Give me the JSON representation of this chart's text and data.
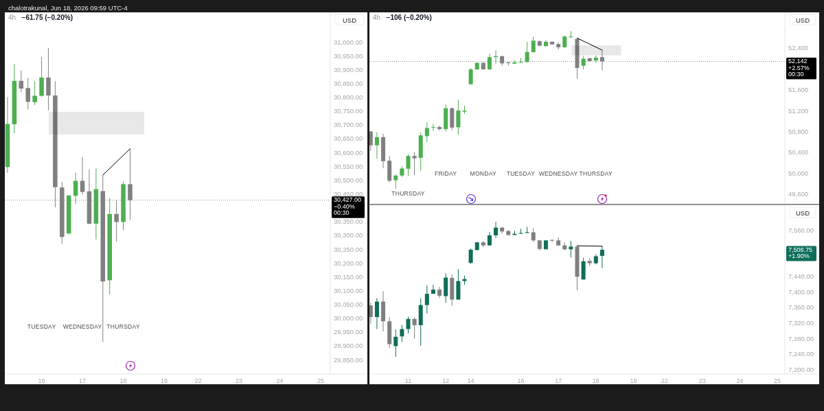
{
  "chart_data": [
    {
      "type": "candlestick",
      "title": "4h",
      "subtitle": "−61.75 (−0.20%)",
      "ylabel": "USD",
      "annotations": [
        "chalotrakunal, Jun 18, 2026 09:59 UTC-4",
        "TUESDAY",
        "WEDNESDAY",
        "THURSDAY"
      ],
      "categories": [
        null,
        null,
        null,
        null,
        null,
        "16",
        null,
        null,
        null,
        null,
        null,
        "17",
        null,
        null,
        null,
        null,
        null,
        "18",
        null,
        null,
        null,
        null,
        null,
        "19",
        null,
        null,
        null,
        null,
        "22",
        null,
        null,
        null,
        null,
        null,
        "23",
        null,
        null,
        null,
        null,
        null,
        "24",
        null,
        null,
        null,
        null,
        null,
        "25",
        null
      ],
      "ohlc": [
        [
          30547,
          30800,
          30526,
          30703
        ],
        [
          30702,
          30920,
          30669,
          30859
        ],
        [
          30859,
          30897,
          30818,
          30831
        ],
        [
          30833,
          30870,
          30756,
          30783
        ],
        [
          30782,
          30858,
          30771,
          30805
        ],
        [
          30805,
          30946,
          30801,
          30871
        ],
        [
          30871,
          30978,
          30752,
          30806
        ],
        [
          30806,
          30858,
          30401,
          30474
        ],
        [
          30473,
          30493,
          30268,
          30294
        ],
        [
          30307,
          30446,
          30301,
          30444
        ],
        [
          30443,
          30526,
          30413,
          30497
        ],
        [
          30497,
          30583,
          30448,
          30457
        ],
        [
          30459,
          30538,
          30340,
          30342
        ],
        [
          30342,
          30543,
          30285,
          30467
        ],
        [
          30460,
          30518,
          29914,
          30133
        ],
        [
          30137,
          30435,
          30085,
          30377
        ],
        [
          30377,
          30427,
          30278,
          30348
        ],
        [
          30348,
          30495,
          30318,
          30485
        ],
        [
          30485,
          30613,
          30355,
          30427
        ],
        null,
        null,
        null,
        null,
        null,
        null,
        null,
        null,
        null,
        null,
        null,
        null,
        null,
        null,
        null,
        null,
        null,
        null,
        null,
        null,
        null,
        null,
        null,
        null,
        null,
        null,
        null,
        null,
        null
      ],
      "colors": [
        "#4caf50",
        "#4caf50",
        "#808080",
        "#808080",
        "#4caf50",
        "#4caf50",
        "#808080",
        "#808080",
        "#808080",
        "#4caf50",
        "#4caf50",
        "#808080",
        "#808080",
        "#4caf50",
        "#808080",
        "#4caf50",
        "#808080",
        "#4caf50",
        "#808080",
        null,
        null,
        null,
        null,
        null,
        null,
        null,
        null,
        null,
        null,
        null,
        null,
        null,
        null,
        null,
        null,
        null,
        null,
        null,
        null,
        null,
        null,
        null,
        null,
        null,
        null,
        null,
        null,
        null
      ],
      "series": [
        {
          "type": "line",
          "values": [
            null,
            null,
            null,
            null,
            null,
            null,
            null,
            null,
            null,
            null,
            null,
            null,
            null,
            null,
            30518,
            null,
            null,
            null,
            30613,
            null,
            null,
            null,
            null,
            null,
            null,
            null,
            null,
            null,
            null,
            null,
            null,
            null,
            null,
            null,
            null,
            null,
            null,
            null,
            null,
            null,
            null,
            null,
            null,
            null,
            null,
            null,
            null,
            null
          ],
          "color": "#000000"
        }
      ],
      "bands": [
        {
          "axis": "y",
          "from": 30665,
          "to": 30747,
          "color": "#e8e8e8"
        }
      ],
      "ref_lines": [
        {
          "axis": "y",
          "value": 30427,
          "label": "30,427.00\n−0.40%\n00:30",
          "color": "#000000",
          "line_style": "dotted"
        }
      ],
      "ylim": [
        29798,
        31107
      ],
      "yticks": [
        {
          "value": 29850,
          "label": "29,850.00"
        },
        {
          "value": 29900,
          "label": "29,900.00"
        },
        {
          "value": 29950,
          "label": "29,950.00"
        },
        {
          "value": 30000,
          "label": "30,000.00"
        },
        {
          "value": 30050,
          "label": "30,050.00"
        },
        {
          "value": 30100,
          "label": "30,100.00"
        },
        {
          "value": 30150,
          "label": "30,150.00"
        },
        {
          "value": 30200,
          "label": "30,200.00"
        },
        {
          "value": 30250,
          "label": "30,250.00"
        },
        {
          "value": 30300,
          "label": "30,300.00"
        },
        {
          "value": 30350,
          "label": "30,350.00"
        },
        {
          "value": 30450,
          "label": "30,450.00"
        },
        {
          "value": 30500,
          "label": "30,500.00"
        },
        {
          "value": 30550,
          "label": "30,550.00"
        },
        {
          "value": 30600,
          "label": "30,600.00"
        },
        {
          "value": 30650,
          "label": "30,650.00"
        },
        {
          "value": 30700,
          "label": "30,700.00"
        },
        {
          "value": 30750,
          "label": "30,750.00"
        },
        {
          "value": 30800,
          "label": "30,800.00"
        },
        {
          "value": 30850,
          "label": "30,850.00"
        },
        {
          "value": 30900,
          "label": "30,900.00"
        },
        {
          "value": 30950,
          "label": "30,950.00"
        },
        {
          "value": 31000,
          "label": "31,000.00"
        }
      ]
    },
    {
      "type": "candlestick",
      "title": "4h",
      "subtitle": "−106 (−0.20%)",
      "ylabel": "USD",
      "tick_labels": "y",
      "annotations": [
        "THURSDAY",
        "FRIDAY",
        "MONDAY",
        "TUESDAY",
        "WEDNESDAY",
        "THURSDAY"
      ],
      "categories": [
        null,
        null,
        null,
        null,
        null,
        null,
        null,
        null,
        null,
        null,
        null,
        null,
        null,
        null,
        null,
        null,
        null,
        null,
        null,
        null,
        null,
        null,
        null,
        null,
        null,
        null,
        null,
        null,
        null,
        null,
        null,
        null,
        null,
        null,
        null,
        null,
        null,
        null,
        null,
        null,
        null,
        null,
        null,
        null,
        null,
        null,
        null,
        null,
        null,
        null,
        null,
        null,
        null,
        null,
        null,
        null,
        null,
        null,
        null,
        null,
        null,
        null,
        null,
        null,
        null,
        null,
        null
      ],
      "ohlc": [
        [
          50800,
          50810,
          50425,
          50535
        ],
        [
          50535,
          50785,
          50275,
          50690
        ],
        [
          50690,
          50755,
          50095,
          50230
        ],
        [
          50240,
          50330,
          49825,
          49855
        ],
        [
          49865,
          49975,
          49705,
          49955
        ],
        [
          49955,
          50130,
          49930,
          50090
        ],
        [
          50085,
          50360,
          49945,
          50330
        ],
        [
          50330,
          50405,
          49965,
          50285
        ],
        [
          50295,
          50785,
          50045,
          50725
        ],
        [
          50710,
          50975,
          50595,
          50865
        ],
        [
          50875,
          50945,
          50810,
          50885
        ],
        [
          50885,
          50910,
          50820,
          50845
        ],
        [
          50845,
          51315,
          50800,
          51245
        ],
        [
          51245,
          51260,
          50820,
          50875
        ],
        [
          50880,
          51410,
          50735,
          51200
        ],
        [
          51180,
          51295,
          51135,
          51200
        ],
        [
          51705,
          52015,
          51700,
          51990
        ],
        [
          51990,
          52125,
          51985,
          52115
        ],
        [
          52115,
          52130,
          51985,
          51990
        ],
        [
          51990,
          52290,
          51990,
          52225
        ],
        [
          52225,
          52355,
          52100,
          52245
        ],
        [
          52245,
          52250,
          52060,
          52105
        ],
        [
          52125,
          52135,
          52060,
          52110
        ],
        [
          52100,
          52160,
          52095,
          52125
        ],
        [
          52120,
          52210,
          52115,
          52130
        ],
        [
          52130,
          52520,
          52130,
          52325
        ],
        [
          52320,
          52620,
          52320,
          52540
        ],
        [
          52530,
          52545,
          52430,
          52445
        ],
        [
          52435,
          52550,
          52435,
          52520
        ],
        [
          52520,
          52530,
          52460,
          52470
        ],
        [
          52475,
          52510,
          52375,
          52415
        ],
        [
          52415,
          52640,
          52400,
          52620
        ],
        [
          52610,
          52725,
          52590,
          52620
        ],
        [
          52575,
          52590,
          51815,
          52020
        ],
        [
          52060,
          52245,
          51990,
          52195
        ],
        [
          52205,
          52210,
          52135,
          52150
        ],
        [
          52160,
          52255,
          52115,
          52215
        ],
        [
          52225,
          52355,
          51970,
          52142
        ],
        null,
        null,
        null,
        null,
        null,
        null,
        null,
        null,
        null,
        null,
        null,
        null,
        null,
        null,
        null,
        null,
        null,
        null,
        null,
        null,
        null,
        null,
        null,
        null,
        null,
        null,
        null,
        null,
        null
      ],
      "colors": [
        "#808080",
        "#4caf50",
        "#808080",
        "#808080",
        "#4caf50",
        "#4caf50",
        "#4caf50",
        "#808080",
        "#4caf50",
        "#4caf50",
        "#4caf50",
        "#808080",
        "#4caf50",
        "#808080",
        "#4caf50",
        "#4caf50",
        "#4caf50",
        "#4caf50",
        "#808080",
        "#4caf50",
        "#4caf50",
        "#808080",
        "#808080",
        "#4caf50",
        "#4caf50",
        "#4caf50",
        "#4caf50",
        "#808080",
        "#4caf50",
        "#808080",
        "#808080",
        "#4caf50",
        "#4caf50",
        "#808080",
        "#4caf50",
        "#808080",
        "#4caf50",
        "#808080",
        null,
        null,
        null,
        null,
        null,
        null,
        null,
        null,
        null,
        null,
        null,
        null,
        null,
        null,
        null,
        null,
        null,
        null,
        null,
        null,
        null,
        null,
        null,
        null,
        null,
        null,
        null,
        null,
        null
      ],
      "series": [
        {
          "type": "line",
          "values": [
            null,
            null,
            null,
            null,
            null,
            null,
            null,
            null,
            null,
            null,
            null,
            null,
            null,
            null,
            null,
            null,
            null,
            null,
            null,
            null,
            null,
            null,
            null,
            null,
            null,
            null,
            null,
            null,
            null,
            null,
            null,
            null,
            null,
            52590,
            null,
            null,
            null,
            52360,
            null,
            null,
            null,
            null,
            null,
            null,
            null,
            null,
            null,
            null,
            null,
            null,
            null,
            null,
            null,
            null,
            null,
            null,
            null,
            null,
            null,
            null,
            null,
            null,
            null,
            null,
            null,
            null,
            null
          ],
          "color": "#000000"
        }
      ],
      "bands": [
        {
          "axis": "y",
          "from": 52260,
          "to": 52450,
          "color": "#e8e8e8"
        }
      ],
      "ref_lines": [
        {
          "axis": "y",
          "value": 52142,
          "label": "52,142\n+2.57%\n00:30",
          "color": "#000000",
          "line_style": "dotted"
        }
      ],
      "ylim": [
        49413,
        53084
      ],
      "yticks": [
        {
          "value": 49600,
          "label": "49,600"
        },
        {
          "value": 50000,
          "label": "50,000"
        },
        {
          "value": 50400,
          "label": "50,400"
        },
        {
          "value": 50800,
          "label": "50,800"
        },
        {
          "value": 51200,
          "label": "51,200"
        },
        {
          "value": 51600,
          "label": "51,600"
        },
        {
          "value": 52400,
          "label": "52,400"
        }
      ]
    },
    {
      "type": "candlestick",
      "ylabel": "USD",
      "annotations": [
        "7,508.75\n+1.90%"
      ],
      "categories": [
        null,
        null,
        null,
        null,
        null,
        null,
        "11",
        null,
        null,
        null,
        null,
        null,
        "12",
        null,
        null,
        null,
        "14",
        null,
        null,
        null,
        null,
        null,
        null,
        null,
        "16",
        null,
        null,
        null,
        null,
        null,
        "17",
        null,
        null,
        null,
        null,
        null,
        "18",
        null,
        null,
        null,
        null,
        null,
        "19",
        null,
        null,
        null,
        null,
        "22",
        null,
        null,
        null,
        null,
        null,
        "23",
        null,
        null,
        null,
        null,
        null,
        "24",
        null,
        null,
        null,
        null,
        null,
        "25",
        null
      ],
      "ohlc": [
        [
          7365,
          7372,
          7318,
          7335
        ],
        [
          7335,
          7384,
          7304,
          7375
        ],
        [
          7375,
          7402,
          7298,
          7324
        ],
        [
          7324,
          7335,
          7255,
          7265
        ],
        [
          7260,
          7303,
          7232,
          7284
        ],
        [
          7285,
          7315,
          7271,
          7304
        ],
        [
          7304,
          7336,
          7293,
          7330
        ],
        [
          7330,
          7335,
          7279,
          7314
        ],
        [
          7314,
          7384,
          7261,
          7366
        ],
        [
          7366,
          7417,
          7344,
          7395
        ],
        [
          7395,
          7418,
          7395,
          7406
        ],
        [
          7406,
          7413,
          7384,
          7390
        ],
        [
          7389,
          7448,
          7372,
          7437
        ],
        [
          7436,
          7445,
          7364,
          7380
        ],
        [
          7380,
          7459,
          7380,
          7428
        ],
        [
          7428,
          7442,
          7418,
          7433
        ],
        [
          7475,
          7512,
          7472,
          7509
        ],
        [
          7508,
          7528,
          7507,
          7528
        ],
        [
          7528,
          7531,
          7516,
          7520
        ],
        [
          7520,
          7555,
          7520,
          7546
        ],
        [
          7546,
          7581,
          7539,
          7566
        ],
        [
          7566,
          7568,
          7551,
          7556
        ],
        [
          7557,
          7560,
          7545,
          7547
        ],
        [
          7547,
          7558,
          7547,
          7550
        ],
        [
          7550,
          7563,
          7550,
          7552
        ],
        [
          7552,
          7568,
          7552,
          7554
        ],
        [
          7554,
          7565,
          7529,
          7533
        ],
        [
          7533,
          7533,
          7507,
          7511
        ],
        [
          7510,
          7533,
          7510,
          7533
        ],
        [
          7534,
          7536,
          7529,
          7533
        ],
        [
          7533,
          7541,
          7519,
          7520
        ],
        [
          7520,
          7528,
          7507,
          7510
        ],
        [
          7510,
          7532,
          7489,
          7517
        ],
        [
          7517,
          7519,
          7404,
          7439
        ],
        [
          7432,
          7488,
          7432,
          7479
        ],
        [
          7480,
          7487,
          7467,
          7474
        ],
        [
          7474,
          7497,
          7471,
          7492
        ],
        [
          7493,
          7518,
          7461,
          7508.75
        ],
        null,
        null,
        null,
        null,
        null,
        null,
        null,
        null,
        null,
        null,
        null,
        null,
        null,
        null,
        null,
        null,
        null,
        null,
        null,
        null,
        null,
        null,
        null,
        null,
        null,
        null,
        null,
        null,
        null
      ],
      "colors": [
        "#808080",
        "#0f6e5a",
        "#808080",
        "#808080",
        "#0f6e5a",
        "#0f6e5a",
        "#0f6e5a",
        "#808080",
        "#0f6e5a",
        "#0f6e5a",
        "#0f6e5a",
        "#808080",
        "#0f6e5a",
        "#808080",
        "#0f6e5a",
        "#0f6e5a",
        "#0f6e5a",
        "#0f6e5a",
        "#808080",
        "#0f6e5a",
        "#0f6e5a",
        "#808080",
        "#808080",
        "#0f6e5a",
        "#0f6e5a",
        "#0f6e5a",
        "#808080",
        "#808080",
        "#0f6e5a",
        "#808080",
        "#808080",
        "#808080",
        "#0f6e5a",
        "#808080",
        "#0f6e5a",
        "#808080",
        "#0f6e5a",
        "#0f6e5a",
        null,
        null,
        null,
        null,
        null,
        null,
        null,
        null,
        null,
        null,
        null,
        null,
        null,
        null,
        null,
        null,
        null,
        null,
        null,
        null,
        null,
        null,
        null,
        null,
        null,
        null,
        null,
        null,
        null
      ],
      "series": [
        {
          "type": "line",
          "values": [
            null,
            null,
            null,
            null,
            null,
            null,
            null,
            null,
            null,
            null,
            null,
            null,
            null,
            null,
            null,
            null,
            null,
            null,
            null,
            null,
            null,
            null,
            null,
            null,
            null,
            null,
            null,
            null,
            null,
            null,
            null,
            null,
            null,
            7519,
            null,
            null,
            null,
            7518,
            null,
            null,
            null,
            null,
            null,
            null,
            null,
            null,
            null,
            null,
            null,
            null,
            null,
            null,
            null,
            null,
            null,
            null,
            null,
            null,
            null,
            null,
            null,
            null,
            null,
            null,
            null,
            null,
            null
          ],
          "color": "#000000"
        }
      ],
      "ylim": [
        7188,
        7624
      ],
      "yticks": [
        {
          "value": 7200,
          "label": "7,200.00"
        },
        {
          "value": 7240,
          "label": "7,240.00"
        },
        {
          "value": 7280,
          "label": "7,280.00"
        },
        {
          "value": 7320,
          "label": "7,320.00"
        },
        {
          "value": 7360,
          "label": "7,360.00"
        },
        {
          "value": 7400,
          "label": "7,400.00"
        },
        {
          "value": 7440,
          "label": "7,440.00"
        },
        {
          "value": 7560,
          "label": "7,560.00"
        }
      ]
    }
  ]
}
